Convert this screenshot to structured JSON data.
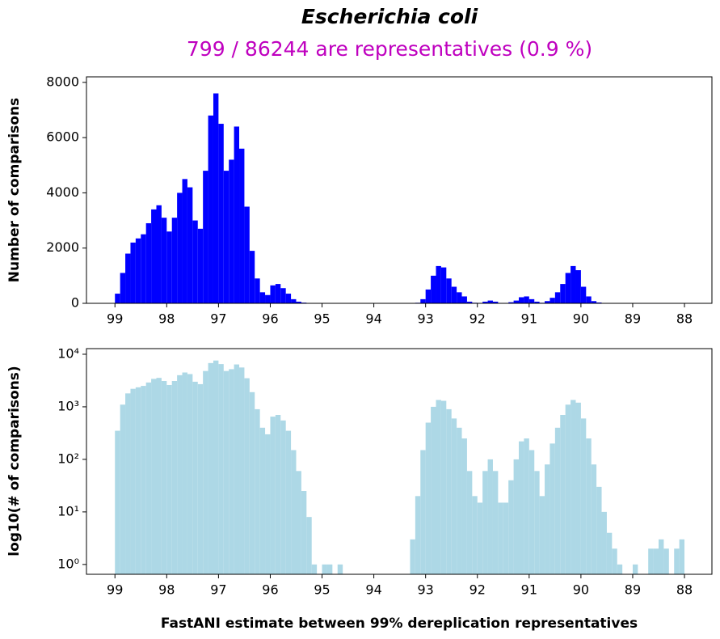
{
  "chart_data": [
    {
      "type": "histogram",
      "title": "Escherichia coli",
      "subtitle": "799 / 86244 are representatives (0.9 %)",
      "ylabel": "Number of comparisons",
      "color": "#0000ff",
      "log": false,
      "bins": [
        88.0,
        88.1,
        88.2,
        88.3,
        88.4,
        88.5,
        88.6,
        88.7,
        88.8,
        88.9,
        89.0,
        89.1,
        89.2,
        89.3,
        89.4,
        89.5,
        89.6,
        89.7,
        89.8,
        89.9,
        90.0,
        90.1,
        90.2,
        90.3,
        90.4,
        90.5,
        90.6,
        90.7,
        90.8,
        90.9,
        91.0,
        91.1,
        91.2,
        91.3,
        91.4,
        91.5,
        91.6,
        91.7,
        91.8,
        91.9,
        92.0,
        92.1,
        92.2,
        92.3,
        92.4,
        92.5,
        92.6,
        92.7,
        92.8,
        92.9,
        93.0,
        93.1,
        93.2,
        93.3,
        93.4,
        93.5,
        93.6,
        93.7,
        93.8,
        93.9,
        94.0,
        94.1,
        94.2,
        94.3,
        94.4,
        94.5,
        94.6,
        94.7,
        94.8,
        94.9,
        95.0,
        95.1,
        95.2,
        95.3,
        95.4,
        95.5,
        95.6,
        95.7,
        95.8,
        95.9,
        96.0,
        96.1,
        96.2,
        96.3,
        96.4,
        96.5,
        96.6,
        96.7,
        96.8,
        96.9,
        97.0,
        97.1,
        97.2,
        97.3,
        97.4,
        97.5,
        97.6,
        97.7,
        97.8,
        97.9,
        98.0,
        98.1,
        98.2,
        98.3,
        98.4,
        98.5,
        98.6,
        98.7,
        98.8,
        98.9,
        99.0
      ],
      "counts": [
        3,
        2,
        0,
        2,
        3,
        2,
        2,
        0,
        0,
        1,
        0,
        0,
        1,
        2,
        4,
        10,
        30,
        80,
        250,
        600,
        1200,
        1350,
        1100,
        700,
        400,
        200,
        80,
        20,
        60,
        150,
        250,
        220,
        100,
        40,
        15,
        15,
        60,
        100,
        60,
        15,
        20,
        60,
        250,
        400,
        600,
        900,
        1300,
        1350,
        1000,
        500,
        150,
        20,
        3,
        0,
        0,
        0,
        0,
        0,
        0,
        0,
        0,
        0,
        0,
        0,
        0,
        0,
        1,
        0,
        1,
        1,
        0,
        1,
        8,
        25,
        60,
        150,
        350,
        550,
        700,
        650,
        300,
        400,
        900,
        1900,
        3500,
        5600,
        6400,
        5200,
        4800,
        6500,
        7600,
        6800,
        4800,
        2700,
        3000,
        4200,
        4500,
        4000,
        3100,
        2600,
        3100,
        3550,
        3400,
        2900,
        2500,
        2350,
        2200,
        1800,
        1100,
        350
      ],
      "xlim": [
        99.55,
        87.47
      ],
      "xticks": [
        99,
        98,
        97,
        96,
        95,
        94,
        93,
        92,
        91,
        90,
        89,
        88
      ],
      "ylim": [
        0,
        8200
      ],
      "yticks": [
        0,
        2000,
        4000,
        6000,
        8000
      ]
    },
    {
      "type": "histogram",
      "ylabel": "log10(# of comparisons)",
      "xlabel": "FastANI estimate between 99% dereplication representatives",
      "color": "#add8e6",
      "log": true,
      "bins": [
        88.0,
        88.1,
        88.2,
        88.3,
        88.4,
        88.5,
        88.6,
        88.7,
        88.8,
        88.9,
        89.0,
        89.1,
        89.2,
        89.3,
        89.4,
        89.5,
        89.6,
        89.7,
        89.8,
        89.9,
        90.0,
        90.1,
        90.2,
        90.3,
        90.4,
        90.5,
        90.6,
        90.7,
        90.8,
        90.9,
        91.0,
        91.1,
        91.2,
        91.3,
        91.4,
        91.5,
        91.6,
        91.7,
        91.8,
        91.9,
        92.0,
        92.1,
        92.2,
        92.3,
        92.4,
        92.5,
        92.6,
        92.7,
        92.8,
        92.9,
        93.0,
        93.1,
        93.2,
        93.3,
        93.4,
        93.5,
        93.6,
        93.7,
        93.8,
        93.9,
        94.0,
        94.1,
        94.2,
        94.3,
        94.4,
        94.5,
        94.6,
        94.7,
        94.8,
        94.9,
        95.0,
        95.1,
        95.2,
        95.3,
        95.4,
        95.5,
        95.6,
        95.7,
        95.8,
        95.9,
        96.0,
        96.1,
        96.2,
        96.3,
        96.4,
        96.5,
        96.6,
        96.7,
        96.8,
        96.9,
        97.0,
        97.1,
        97.2,
        97.3,
        97.4,
        97.5,
        97.6,
        97.7,
        97.8,
        97.9,
        98.0,
        98.1,
        98.2,
        98.3,
        98.4,
        98.5,
        98.6,
        98.7,
        98.8,
        98.9,
        99.0
      ],
      "counts": [
        3,
        2,
        0,
        2,
        3,
        2,
        2,
        0,
        0,
        1,
        0,
        0,
        1,
        2,
        4,
        10,
        30,
        80,
        250,
        600,
        1200,
        1350,
        1100,
        700,
        400,
        200,
        80,
        20,
        60,
        150,
        250,
        220,
        100,
        40,
        15,
        15,
        60,
        100,
        60,
        15,
        20,
        60,
        250,
        400,
        600,
        900,
        1300,
        1350,
        1000,
        500,
        150,
        20,
        3,
        0,
        0,
        0,
        0,
        0,
        0,
        0,
        0,
        0,
        0,
        0,
        0,
        0,
        1,
        0,
        1,
        1,
        0,
        1,
        8,
        25,
        60,
        150,
        350,
        550,
        700,
        650,
        300,
        400,
        900,
        1900,
        3500,
        5600,
        6400,
        5200,
        4800,
        6500,
        7600,
        6800,
        4800,
        2700,
        3000,
        4200,
        4500,
        4000,
        3100,
        2600,
        3100,
        3550,
        3400,
        2900,
        2500,
        2350,
        2200,
        1800,
        1100,
        350
      ],
      "xlim": [
        99.55,
        87.47
      ],
      "xticks": [
        99,
        98,
        97,
        96,
        95,
        94,
        93,
        92,
        91,
        90,
        89,
        88
      ],
      "ylim": [
        0.65,
        12800
      ],
      "yticks": [
        {
          "value": 1,
          "label": "10⁰"
        },
        {
          "value": 10,
          "label": "10¹"
        },
        {
          "value": 100,
          "label": "10²"
        },
        {
          "value": 1000,
          "label": "10³"
        },
        {
          "value": 10000,
          "label": "10⁴"
        }
      ]
    }
  ]
}
